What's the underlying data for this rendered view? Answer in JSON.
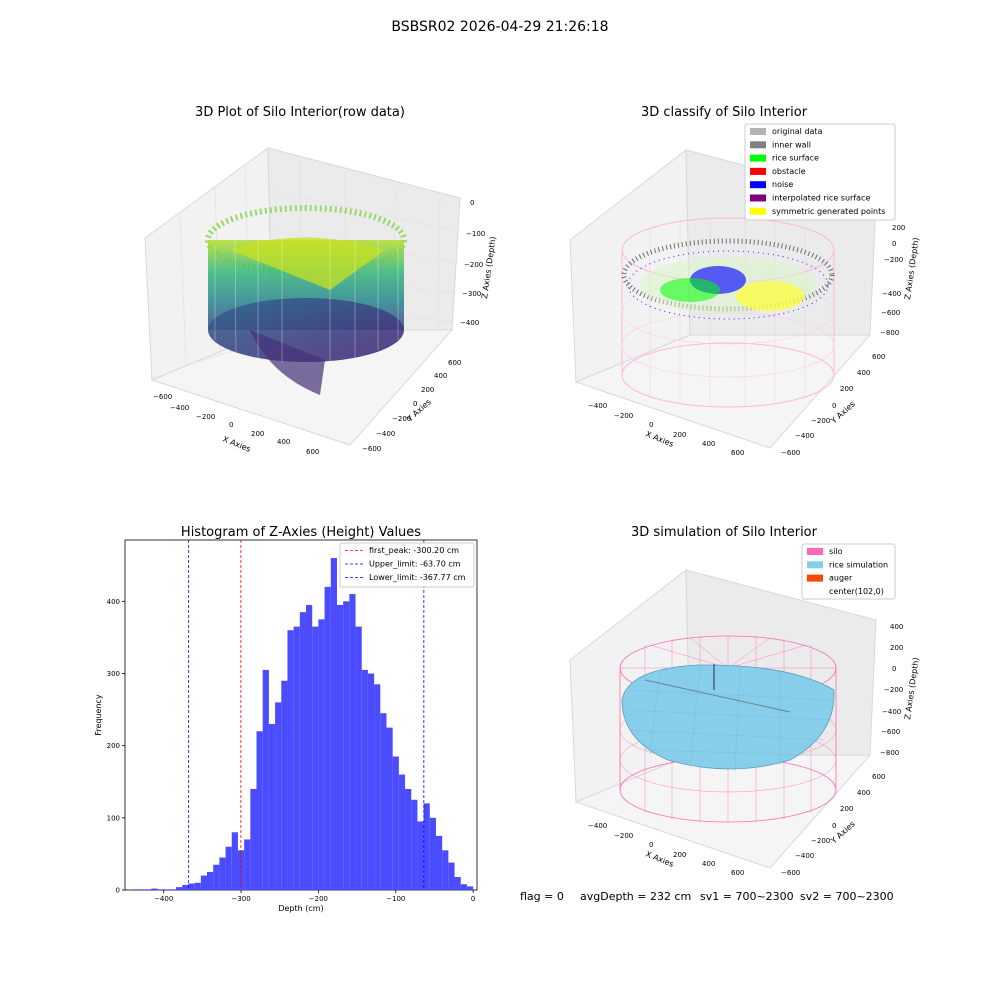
{
  "figure_title": "BSBSR02 2026-04-29 21:26:18",
  "panels": {
    "raw": {
      "title": "3D Plot of Silo Interior(row data)",
      "xlabel": "X Axies",
      "ylabel": "Y Axies",
      "zlabel": "Z Axies (Depth)",
      "xticks": [
        "−600",
        "−400",
        "−200",
        "0",
        "200",
        "400",
        "600"
      ],
      "yticks": [
        "−600",
        "−400",
        "−200",
        "0",
        "200",
        "400",
        "600"
      ],
      "zticks": [
        "0",
        "−100",
        "−200",
        "−300",
        "−400"
      ]
    },
    "classify": {
      "title": "3D classify of Silo Interior",
      "xlabel": "X Axies",
      "ylabel": "Y Axies",
      "zlabel": "Z Axies (Depth)",
      "xticks": [
        "−400",
        "−200",
        "0",
        "200",
        "400",
        "600"
      ],
      "yticks": [
        "−600",
        "−400",
        "−200",
        "0",
        "200",
        "400",
        "600"
      ],
      "zticks": [
        "200",
        "0",
        "−200",
        "−400",
        "−600",
        "−800"
      ],
      "legend": [
        {
          "label": "original data",
          "color": "#b3b3b3"
        },
        {
          "label": "inner wall",
          "color": "#808080"
        },
        {
          "label": "rice surface",
          "color": "#00ff00"
        },
        {
          "label": "obstacle",
          "color": "#ff0000"
        },
        {
          "label": "noise",
          "color": "#0000ff"
        },
        {
          "label": "interpolated rice surface",
          "color": "#800080"
        },
        {
          "label": "symmetric generated points",
          "color": "#ffff00"
        }
      ]
    },
    "simulation": {
      "title": "3D simulation of Silo Interior",
      "xlabel": "X Axies",
      "ylabel": "Y Axies",
      "zlabel": "Z Axies (Depth)",
      "xticks": [
        "−400",
        "−200",
        "0",
        "200",
        "400",
        "600"
      ],
      "yticks": [
        "−600",
        "−400",
        "−200",
        "0",
        "200",
        "400",
        "600"
      ],
      "zticks": [
        "400",
        "200",
        "0",
        "−200",
        "−400",
        "−600",
        "−800"
      ],
      "legend": [
        {
          "label": "silo",
          "color": "#ff69b4"
        },
        {
          "label": "rice simulation",
          "color": "#87ceeb"
        },
        {
          "label": "auger",
          "color": "#ff4500"
        },
        {
          "label": "center(102,0)",
          "color": "#ffffff"
        }
      ]
    }
  },
  "status_line": {
    "flag": "flag = 0",
    "avg_depth": "avgDepth = 232 cm",
    "sv1": "sv1 = 700~2300",
    "sv2": "sv2 = 700~2300"
  },
  "chart_data": [
    {
      "type": "scatter",
      "title": "3D Plot of Silo Interior(row data)",
      "xlabel": "X Axies",
      "ylabel": "Y Axies",
      "zlabel": "Z Axies (Depth)",
      "xlim": [
        -600,
        700
      ],
      "ylim": [
        -600,
        700
      ],
      "zlim": [
        -450,
        0
      ],
      "colormap": "viridis"
    },
    {
      "type": "scatter",
      "title": "3D classify of Silo Interior",
      "xlabel": "X Axies",
      "ylabel": "Y Axies",
      "zlabel": "Z Axies (Depth)",
      "xlim": [
        -500,
        700
      ],
      "ylim": [
        -600,
        700
      ],
      "zlim": [
        -900,
        300
      ],
      "series": [
        {
          "name": "original data"
        },
        {
          "name": "inner wall"
        },
        {
          "name": "rice surface"
        },
        {
          "name": "obstacle"
        },
        {
          "name": "noise"
        },
        {
          "name": "interpolated rice surface"
        },
        {
          "name": "symmetric generated points"
        }
      ]
    },
    {
      "type": "bar",
      "title": "Histogram of Z-Axies (Height) Values",
      "xlabel": "Depth (cm)",
      "ylabel": "Frequency",
      "xlim": [
        -450,
        5
      ],
      "ylim": [
        0,
        485
      ],
      "xticks": [
        -400,
        -300,
        -200,
        -100,
        0
      ],
      "yticks": [
        0,
        100,
        200,
        300,
        400
      ],
      "bin_start": -440,
      "bin_width": 8.0,
      "values": [
        1,
        1,
        1,
        2,
        1,
        1,
        1,
        4,
        7,
        9,
        10,
        20,
        25,
        35,
        45,
        60,
        80,
        55,
        70,
        140,
        220,
        305,
        230,
        260,
        290,
        360,
        365,
        385,
        395,
        365,
        375,
        420,
        460,
        395,
        400,
        410,
        365,
        305,
        300,
        285,
        245,
        225,
        185,
        160,
        140,
        125,
        95,
        120,
        100,
        75,
        55,
        38,
        18,
        8,
        5
      ],
      "vlines": [
        {
          "label": "first_peak: -300.20 cm",
          "x": -300.2,
          "color": "#ff0000"
        },
        {
          "label": "Upper_limit: -63.70 cm",
          "x": -63.7,
          "color": "#0000ff"
        },
        {
          "label": "Lower_limit: -367.77 cm",
          "x": -367.77,
          "color": "#0000ff"
        }
      ],
      "bar_color": "#4b4bff"
    },
    {
      "type": "scatter",
      "title": "3D simulation of Silo Interior",
      "xlabel": "X Axies",
      "ylabel": "Y Axies",
      "zlabel": "Z Axies (Depth)",
      "xlim": [
        -500,
        700
      ],
      "ylim": [
        -600,
        700
      ],
      "zlim": [
        -900,
        450
      ],
      "series": [
        {
          "name": "silo"
        },
        {
          "name": "rice simulation"
        },
        {
          "name": "auger"
        },
        {
          "name": "center(102,0)"
        }
      ]
    }
  ]
}
